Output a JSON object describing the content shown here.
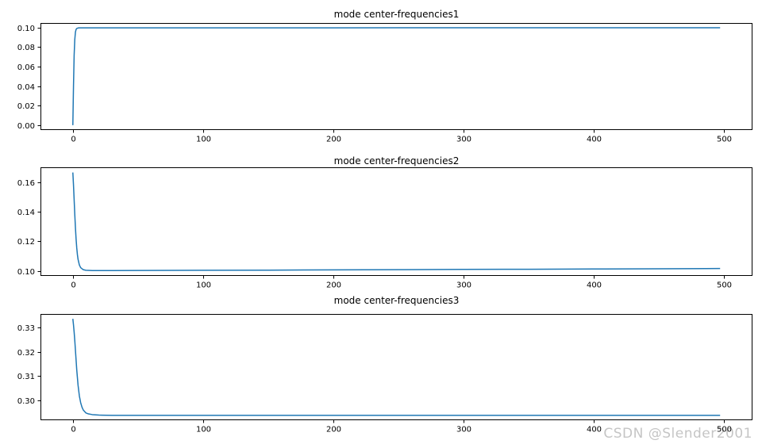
{
  "watermark": {
    "text": "CSDN @Slender2001",
    "color": "#c5c5c5"
  },
  "colors": {
    "line": "#1f77b4",
    "axis": "#000000",
    "background": "#ffffff"
  },
  "chart_data": [
    {
      "type": "line",
      "title": "mode center-frequencies1",
      "xlabel": "",
      "ylabel": "",
      "xlim": [
        -24.85,
        521.85
      ],
      "ylim": [
        -0.005,
        0.1048
      ],
      "xticks": [
        0,
        100,
        200,
        300,
        400,
        500
      ],
      "xtick_labels": [
        "0",
        "100",
        "200",
        "300",
        "400",
        "500"
      ],
      "yticks": [
        0.0,
        0.02,
        0.04,
        0.06,
        0.08,
        0.1
      ],
      "ytick_labels": [
        "0.00",
        "0.02",
        "0.04",
        "0.06",
        "0.08",
        "0.10"
      ],
      "grid": false,
      "legend": null,
      "series": [
        {
          "color": "#1f77b4",
          "x": [
            0,
            0.5,
            1,
            1.5,
            2,
            2.5,
            3,
            4,
            5,
            7,
            10,
            20,
            50,
            100,
            150,
            200,
            250,
            300,
            350,
            400,
            450,
            497
          ],
          "y": [
            0.0,
            0.04,
            0.072,
            0.088,
            0.0955,
            0.0982,
            0.0992,
            0.0997,
            0.0998,
            0.0998,
            0.0998,
            0.0998,
            0.0998,
            0.0998,
            0.0998,
            0.0998,
            0.0999,
            0.0999,
            0.0999,
            0.0999,
            0.0999,
            0.0999
          ]
        }
      ]
    },
    {
      "type": "line",
      "title": "mode center-frequencies2",
      "xlabel": "",
      "ylabel": "",
      "xlim": [
        -24.85,
        521.85
      ],
      "ylim": [
        0.0966,
        0.17
      ],
      "xticks": [
        0,
        100,
        200,
        300,
        400,
        500
      ],
      "xtick_labels": [
        "0",
        "100",
        "200",
        "300",
        "400",
        "500"
      ],
      "yticks": [
        0.1,
        0.12,
        0.14,
        0.16
      ],
      "ytick_labels": [
        "0.10",
        "0.12",
        "0.14",
        "0.16"
      ],
      "grid": false,
      "legend": null,
      "series": [
        {
          "color": "#1f77b4",
          "x": [
            0,
            0.5,
            1,
            1.5,
            2,
            2.5,
            3,
            3.5,
            4,
            5,
            6,
            8,
            10,
            15,
            20,
            30,
            50,
            100,
            150,
            200,
            250,
            300,
            350,
            400,
            450,
            497
          ],
          "y": [
            0.1665,
            0.158,
            0.148,
            0.138,
            0.129,
            0.1215,
            0.1155,
            0.111,
            0.1078,
            0.104,
            0.1022,
            0.1008,
            0.1004,
            0.1002,
            0.1002,
            0.1002,
            0.1003,
            0.1004,
            0.1005,
            0.1007,
            0.1008,
            0.101,
            0.1011,
            0.1013,
            0.1014,
            0.1016
          ]
        }
      ]
    },
    {
      "type": "line",
      "title": "mode center-frequencies3",
      "xlabel": "",
      "ylabel": "",
      "xlim": [
        -24.85,
        521.85
      ],
      "ylim": [
        0.2918,
        0.3355
      ],
      "xticks": [
        0,
        100,
        200,
        300,
        400,
        500
      ],
      "xtick_labels": [
        "0",
        "100",
        "200",
        "300",
        "400",
        "500"
      ],
      "yticks": [
        0.3,
        0.31,
        0.32,
        0.33
      ],
      "ytick_labels": [
        "0.30",
        "0.31",
        "0.32",
        "0.33"
      ],
      "grid": false,
      "legend": null,
      "series": [
        {
          "color": "#1f77b4",
          "x": [
            0,
            0.5,
            1,
            1.5,
            2,
            2.5,
            3,
            4,
            5,
            6,
            7,
            8,
            10,
            12,
            15,
            20,
            30,
            50,
            100,
            150,
            200,
            250,
            300,
            350,
            400,
            450,
            497
          ],
          "y": [
            0.3335,
            0.331,
            0.328,
            0.3245,
            0.3205,
            0.3165,
            0.3125,
            0.3062,
            0.3018,
            0.299,
            0.2972,
            0.296,
            0.2948,
            0.2944,
            0.2941,
            0.2939,
            0.2938,
            0.2938,
            0.2938,
            0.2938,
            0.2938,
            0.2938,
            0.2938,
            0.2938,
            0.2938,
            0.2938,
            0.2938
          ]
        }
      ]
    }
  ]
}
